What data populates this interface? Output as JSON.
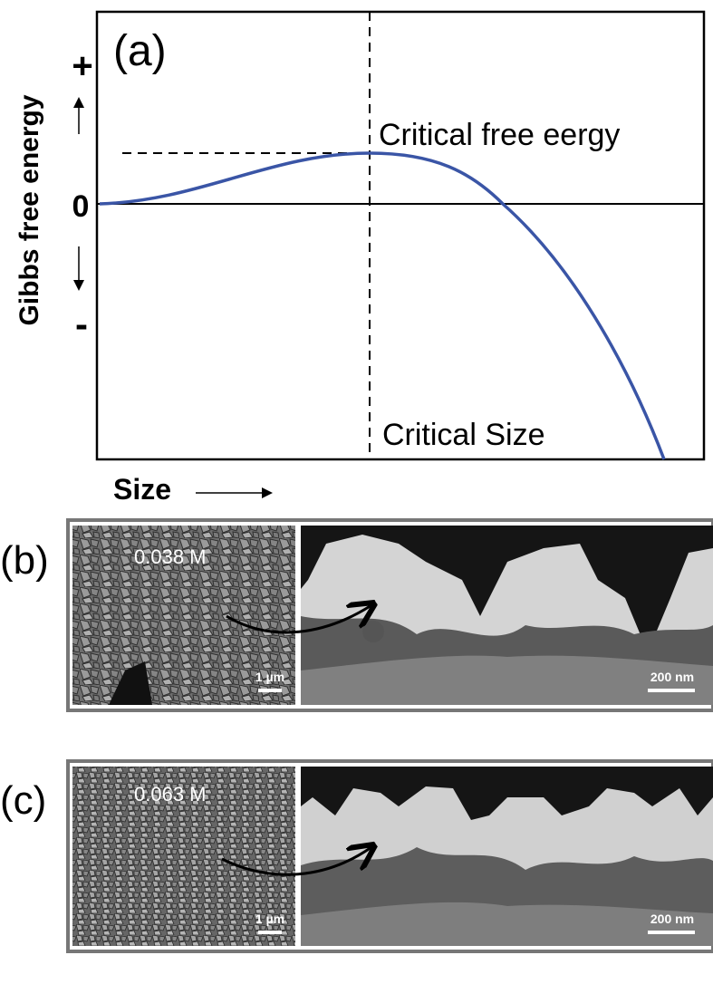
{
  "panel_a": {
    "label": "(a)",
    "y_axis_title": "Gibbs free energy",
    "y_plus": "+",
    "y_zero": "0",
    "y_minus": "-",
    "x_axis_title": "Size",
    "peak_label": "Critical free eergy",
    "size_label": "Critical Size"
  },
  "panel_b": {
    "label": "(b)",
    "concentration": "0.038 M",
    "scale_left": "1 µm",
    "scale_right": "200 nm"
  },
  "panel_c": {
    "label": "(c)",
    "concentration": "0.063 M",
    "scale_left": "1 µm",
    "scale_right": "200 nm"
  }
}
